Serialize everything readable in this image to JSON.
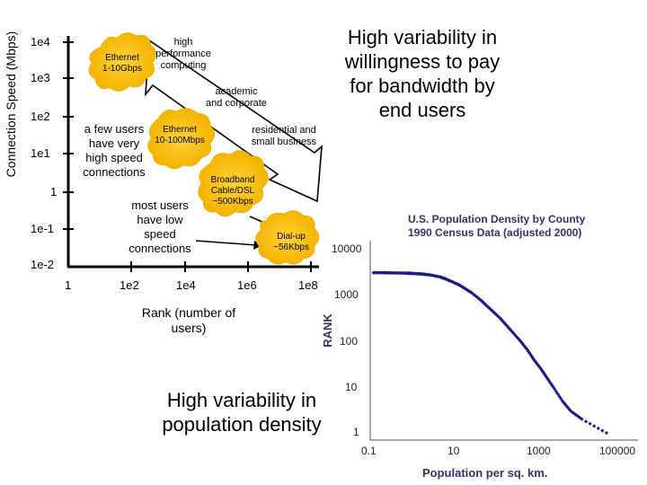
{
  "left_chart": {
    "ylabel": "Connection Speed (Mbps)",
    "yticks": [
      "1e4",
      "1e3",
      "1e2",
      "1e1",
      "1",
      "1e-1",
      "1e-2"
    ],
    "xticks": [
      "1",
      "1e2",
      "1e4",
      "1e6",
      "1e8"
    ],
    "xlabel": "Rank (number of users)",
    "bursts": [
      {
        "name": "ethernet-1-10gbps",
        "text": "Ethernet\n1-10Gbps"
      },
      {
        "name": "ethernet-10-100mbps",
        "text": "Ethernet\n10-100Mbps"
      },
      {
        "name": "broadband",
        "text": "Broadband\nCable/DSL\n~500Kbps"
      },
      {
        "name": "dialup",
        "text": "Dial-up\n~56Kbps"
      }
    ],
    "annotations": {
      "hpc": "high\nperformance\ncomputing",
      "academic": "academic\nand corporate",
      "residential": "residential and\nsmall business",
      "few_users": "a few users\nhave very\nhigh speed\nconnections",
      "most_users": "most users\nhave low\nspeed\nconnections"
    }
  },
  "headlines": {
    "top_right": "High variability in\nwillingness to pay\nfor bandwidth by\nend users",
    "bottom": "High variability in\npopulation density"
  },
  "chart_data": {
    "type": "scatter",
    "title": "U.S. Population Density by County\n1990 Census Data (adjusted 2000)",
    "xlabel": "Population per sq. km.",
    "ylabel": "RANK",
    "x_scale": "log",
    "y_scale": "log",
    "xticks": [
      "0.1",
      "10",
      "1000",
      "100000"
    ],
    "yticks": [
      "10000",
      "1000",
      "100",
      "10",
      "1"
    ],
    "xlim": [
      0.1,
      100000
    ],
    "ylim": [
      1,
      10000
    ],
    "color": "#1a1a8c",
    "points": [
      {
        "x": 0.12,
        "y": 3141
      },
      {
        "x": 0.2,
        "y": 3140
      },
      {
        "x": 0.3,
        "y": 3120
      },
      {
        "x": 0.5,
        "y": 3100
      },
      {
        "x": 0.8,
        "y": 3070
      },
      {
        "x": 1,
        "y": 3040
      },
      {
        "x": 1.5,
        "y": 2980
      },
      {
        "x": 2,
        "y": 2920
      },
      {
        "x": 3,
        "y": 2800
      },
      {
        "x": 5,
        "y": 2550
      },
      {
        "x": 7,
        "y": 2300
      },
      {
        "x": 10,
        "y": 2000
      },
      {
        "x": 15,
        "y": 1700
      },
      {
        "x": 20,
        "y": 1450
      },
      {
        "x": 30,
        "y": 1150
      },
      {
        "x": 50,
        "y": 800
      },
      {
        "x": 70,
        "y": 600
      },
      {
        "x": 100,
        "y": 450
      },
      {
        "x": 150,
        "y": 320
      },
      {
        "x": 200,
        "y": 240
      },
      {
        "x": 300,
        "y": 160
      },
      {
        "x": 500,
        "y": 95
      },
      {
        "x": 700,
        "y": 65
      },
      {
        "x": 1000,
        "y": 40
      },
      {
        "x": 1500,
        "y": 25
      },
      {
        "x": 2000,
        "y": 17
      },
      {
        "x": 3000,
        "y": 10
      },
      {
        "x": 5000,
        "y": 5
      },
      {
        "x": 8000,
        "y": 3
      },
      {
        "x": 15000,
        "y": 2
      },
      {
        "x": 60000,
        "y": 1
      }
    ]
  }
}
